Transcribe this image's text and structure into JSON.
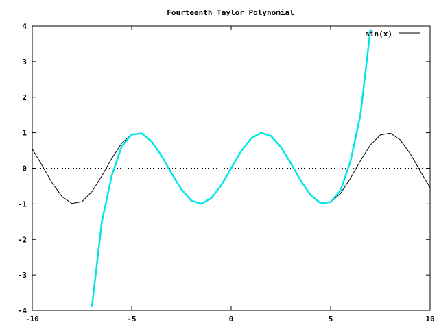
{
  "chart_data": {
    "type": "line",
    "title": "Fourteenth Taylor Polynomial",
    "xlim": [
      -10,
      10
    ],
    "ylim": [
      -4,
      4
    ],
    "x_ticks": [
      -10,
      -5,
      0,
      5,
      10
    ],
    "y_ticks": [
      -4,
      -3,
      -2,
      -1,
      0,
      1,
      2,
      3,
      4
    ],
    "x_tick_labels": [
      "-10",
      "-5",
      "0",
      "5",
      "10"
    ],
    "y_tick_labels": [
      "-4",
      "-3",
      "-2",
      "-1",
      "0",
      "1",
      "2",
      "3",
      "4"
    ],
    "grid": false,
    "zero_line": {
      "y": 0,
      "style": "dotted"
    },
    "legend_position": "top-right",
    "series": [
      {
        "name": "sin(x)",
        "color": "#000000",
        "style": "solid",
        "x": [
          -10,
          -9.5,
          -9,
          -8.5,
          -8,
          -7.5,
          -7,
          -6.5,
          -6,
          -5.5,
          -5,
          -4.5,
          -4,
          -3.5,
          -3,
          -2.5,
          -2,
          -1.5,
          -1,
          -0.5,
          0,
          0.5,
          1,
          1.5,
          2,
          2.5,
          3,
          3.5,
          4,
          4.5,
          5,
          5.5,
          6,
          6.5,
          7,
          7.5,
          8,
          8.5,
          9,
          9.5,
          10
        ],
        "y": [
          0.544,
          0.075,
          -0.412,
          -0.798,
          -0.989,
          -0.938,
          -0.657,
          -0.215,
          0.279,
          0.706,
          0.959,
          0.978,
          0.757,
          0.351,
          -0.141,
          -0.598,
          -0.909,
          -0.997,
          -0.841,
          -0.479,
          0,
          0.479,
          0.841,
          0.997,
          0.909,
          0.598,
          0.141,
          -0.351,
          -0.757,
          -0.978,
          -0.959,
          -0.706,
          -0.279,
          0.215,
          0.657,
          0.938,
          0.989,
          0.798,
          0.412,
          -0.075,
          -0.544
        ]
      },
      {
        "color": "#00e5e5",
        "style": "solid",
        "x": [
          -7,
          -6.5,
          -6,
          -5.5,
          -5,
          -4.5,
          -4,
          -3.5,
          -3,
          -2.5,
          -2,
          -1.5,
          -1,
          -0.5,
          0,
          0.5,
          1,
          1.5,
          2,
          2.5,
          3,
          3.5,
          4,
          4.5,
          5,
          5.5,
          6,
          6.5,
          7
        ],
        "y": [
          -3.9,
          -1.5,
          -0.2,
          0.62,
          0.95,
          0.98,
          0.757,
          0.351,
          -0.141,
          -0.598,
          -0.909,
          -0.997,
          -0.841,
          -0.479,
          0,
          0.479,
          0.841,
          0.997,
          0.909,
          0.598,
          0.141,
          -0.351,
          -0.757,
          -0.98,
          -0.95,
          -0.62,
          0.2,
          1.5,
          3.9
        ]
      }
    ]
  }
}
